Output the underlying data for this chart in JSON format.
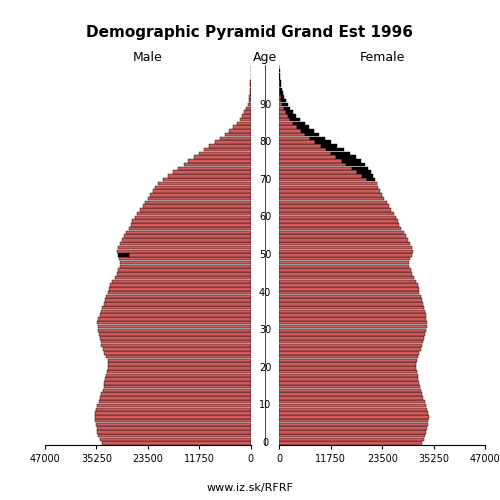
{
  "title": "Demographic Pyramid Grand Est 1996",
  "label_male": "Male",
  "label_female": "Female",
  "label_age": "Age",
  "footer": "www.iz.sk/RFRF",
  "xlim": 47000,
  "bar_color": "#cd5c5c",
  "bar_edge_color": "#000000",
  "age_ticks": [
    0,
    10,
    20,
    30,
    40,
    50,
    60,
    70,
    80,
    90
  ],
  "x_ticks_left": [
    47000,
    35250,
    23500,
    11750,
    0
  ],
  "x_ticks_right": [
    0,
    11750,
    23500,
    35250,
    47000
  ],
  "male": [
    34000,
    34500,
    34800,
    35000,
    35200,
    35400,
    35500,
    35600,
    35500,
    35300,
    35000,
    34700,
    34400,
    34100,
    33800,
    33600,
    33400,
    33200,
    33100,
    32900,
    32700,
    32500,
    32700,
    33000,
    33400,
    33800,
    34100,
    34300,
    34400,
    34600,
    34800,
    34900,
    35000,
    34800,
    34500,
    34200,
    33900,
    33600,
    33300,
    33000,
    32600,
    32300,
    32100,
    31600,
    31100,
    30600,
    30200,
    29900,
    29800,
    30000,
    30400,
    30600,
    30400,
    29900,
    29400,
    28900,
    28400,
    27900,
    27400,
    27000,
    26500,
    25900,
    25300,
    24700,
    24100,
    23500,
    23000,
    22400,
    21800,
    21200,
    20100,
    18900,
    17700,
    16500,
    15300,
    14200,
    13000,
    11800,
    10600,
    9400,
    8200,
    7000,
    5900,
    4900,
    4000,
    3200,
    2500,
    1900,
    1400,
    1000,
    700,
    480,
    310,
    200,
    120,
    70,
    40,
    20,
    10,
    5,
    2
  ],
  "female": [
    32500,
    33000,
    33300,
    33500,
    33700,
    33900,
    34000,
    34100,
    34000,
    33800,
    33500,
    33200,
    32900,
    32600,
    32300,
    32100,
    31900,
    31700,
    31600,
    31400,
    31300,
    31200,
    31400,
    31700,
    32000,
    32400,
    32700,
    32900,
    33100,
    33300,
    33600,
    33700,
    33800,
    33600,
    33400,
    33200,
    33000,
    32800,
    32600,
    32300,
    32000,
    31800,
    31700,
    31300,
    30800,
    30300,
    30000,
    29700,
    29600,
    29900,
    30300,
    30500,
    30300,
    29900,
    29400,
    28900,
    28400,
    27900,
    27400,
    27000,
    26600,
    26100,
    25600,
    25100,
    24500,
    24000,
    23500,
    23000,
    22600,
    22200,
    21800,
    21400,
    20900,
    20300,
    19600,
    18700,
    17500,
    16200,
    14700,
    13200,
    11800,
    10400,
    9100,
    7900,
    6800,
    5800,
    4800,
    3900,
    3100,
    2500,
    1950,
    1480,
    1100,
    800,
    570,
    390,
    260,
    160,
    95,
    50,
    22
  ],
  "male_excess": [
    0,
    0,
    0,
    0,
    0,
    0,
    0,
    0,
    0,
    0,
    0,
    0,
    0,
    0,
    0,
    0,
    0,
    0,
    0,
    0,
    0,
    0,
    0,
    0,
    0,
    0,
    0,
    0,
    0,
    0,
    0,
    0,
    0,
    0,
    0,
    0,
    0,
    0,
    0,
    0,
    0,
    0,
    0,
    0,
    0,
    0,
    0,
    0,
    0,
    0,
    2500,
    0,
    0,
    0,
    0,
    0,
    0,
    0,
    0,
    0,
    0,
    0,
    0,
    0,
    0,
    0,
    0,
    0,
    0,
    0,
    0,
    0,
    0,
    0,
    0,
    0,
    0,
    0,
    0,
    0,
    0,
    0,
    0,
    0,
    0,
    0,
    0,
    0,
    0,
    0,
    0,
    0,
    0,
    0,
    0,
    0,
    0,
    0,
    0,
    0,
    0
  ],
  "female_excess": [
    0,
    0,
    0,
    0,
    0,
    0,
    0,
    0,
    0,
    0,
    0,
    0,
    0,
    0,
    0,
    0,
    0,
    0,
    0,
    0,
    0,
    0,
    0,
    0,
    0,
    0,
    0,
    0,
    0,
    0,
    0,
    0,
    0,
    0,
    0,
    0,
    0,
    0,
    0,
    0,
    0,
    0,
    0,
    0,
    0,
    0,
    0,
    0,
    0,
    0,
    0,
    0,
    0,
    0,
    0,
    0,
    0,
    0,
    0,
    0,
    0,
    0,
    0,
    0,
    0,
    0,
    0,
    0,
    0,
    0,
    1700,
    2500,
    3200,
    3800,
    4300,
    4500,
    4500,
    4400,
    4100,
    3800,
    3600,
    3400,
    3200,
    3000,
    2800,
    2600,
    2300,
    2000,
    1700,
    1500,
    1250,
    1000,
    790,
    600,
    450,
    320,
    220,
    140,
    85,
    45,
    20
  ]
}
